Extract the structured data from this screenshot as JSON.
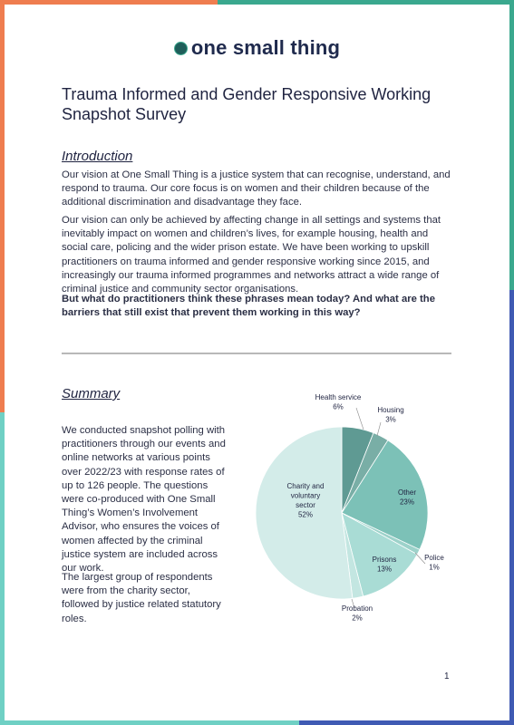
{
  "logo": {
    "text": "one small thing",
    "icon": "circle-dot-icon"
  },
  "title": "Trauma Informed and Gender Responsive Working Snapshot Survey",
  "introduction": {
    "heading": "Introduction",
    "p1": "Our vision at One Small Thing is a justice system that can recognise, understand, and respond to trauma. Our core focus is on women and their children because of the additional discrimination and disadvantage they face.",
    "p2": "Our vision can only be achieved by affecting change in all settings and systems that inevitably impact on women and children’s lives, for example housing, health and social care, policing and the wider prison estate. We have been working to upskill practitioners on trauma informed and gender responsive working since 2015, and increasingly our trauma informed programmes and networks attract a wide range of criminal justice and community sector organisations.",
    "p3": "But what do practitioners think these phrases mean today? And what are the barriers that still exist that prevent them working in this way?"
  },
  "summary": {
    "heading": "Summary",
    "p1": "We conducted snapshot polling with practitioners through our events and online networks at various points over 2022/23 with response rates of up to 126 people. The questions were co-produced with One Small Thing’s Women’s Involvement Advisor, who ensures the voices of women affected by the criminal justice system are included across our work.",
    "p2": "The largest group of respondents were from the charity sector, followed by justice related statutory roles."
  },
  "chart_data": {
    "type": "pie",
    "slices": [
      {
        "name": "Health service",
        "value": 6,
        "label": "6%",
        "color": "#5f9a93"
      },
      {
        "name": "Housing",
        "value": 3,
        "label": "3%",
        "color": "#79aea6"
      },
      {
        "name": "Other",
        "value": 23,
        "label": "23%",
        "color": "#7cc1b7"
      },
      {
        "name": "Police",
        "value": 1,
        "label": "1%",
        "color": "#9dd2ca"
      },
      {
        "name": "Prisons",
        "value": 13,
        "label": "13%",
        "color": "#a9dcd5"
      },
      {
        "name": "Probation",
        "value": 2,
        "label": "2%",
        "color": "#c3e6e1"
      },
      {
        "name": "Charity and voluntary sector",
        "value": 52,
        "label": "52%",
        "color": "#d3ece9"
      }
    ]
  },
  "page_number": "1"
}
